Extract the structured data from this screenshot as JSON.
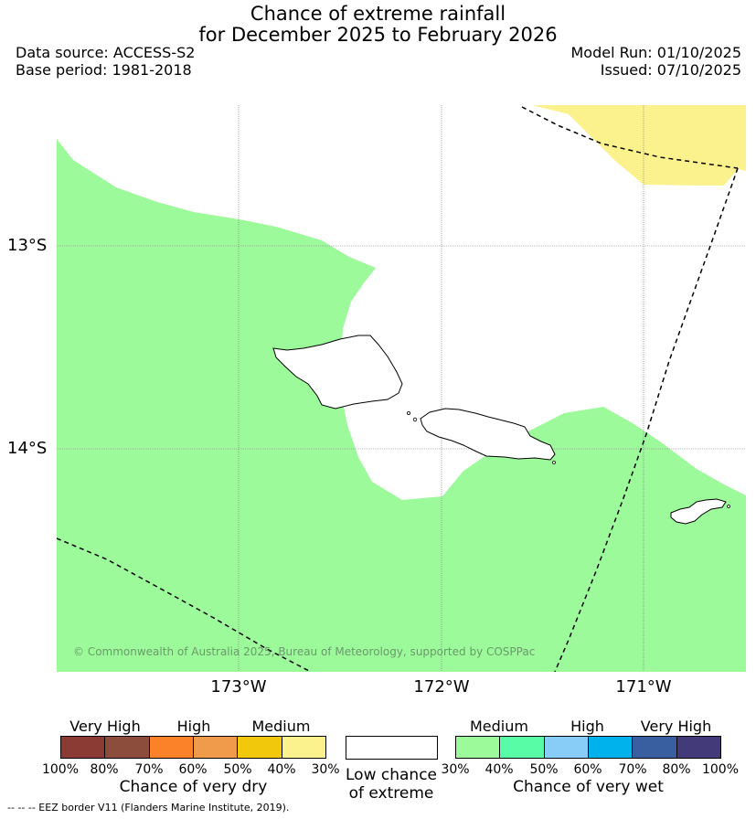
{
  "header": {
    "title_line1": "Chance of extreme rainfall",
    "title_line2": "for December 2025 to February 2026",
    "data_source": "Data source: ACCESS-S2",
    "base_period": "Base period: 1981-2018",
    "model_run": "Model Run: 01/10/2025",
    "issued": "Issued: 07/10/2025"
  },
  "map": {
    "lat_labels": [
      "13°S",
      "14°S"
    ],
    "lon_labels": [
      "173°W",
      "172°W",
      "171°W"
    ],
    "copyright": "© Commonwealth of Australia 2025, Bureau of Meteorology, supported by COSPPac",
    "colors": {
      "medium_wet": "#9cfa9a",
      "medium_dry": "#fbf28e",
      "land_outline": "#000000"
    }
  },
  "legend": {
    "dry": {
      "categories": [
        "Very High",
        "High",
        "Medium"
      ],
      "colors": [
        "#8b3a34",
        "#8c4d3c",
        "#fb8228",
        "#f09a4c",
        "#f1c80c",
        "#fbf28e"
      ],
      "ticks": [
        "100%",
        "80%",
        "70%",
        "60%",
        "50%",
        "40%",
        "30%"
      ],
      "caption": "Chance of very dry"
    },
    "low": {
      "caption_line1": "Low chance",
      "caption_line2": "of extreme"
    },
    "wet": {
      "categories": [
        "Medium",
        "High",
        "Very High"
      ],
      "colors": [
        "#9cfa9a",
        "#58fba6",
        "#88cdf7",
        "#00b2eb",
        "#3a5fa0",
        "#433a79"
      ],
      "ticks": [
        "30%",
        "40%",
        "50%",
        "60%",
        "70%",
        "80%",
        "100%"
      ],
      "caption": "Chance of very wet"
    }
  },
  "footer": {
    "eez_note": "--  --  -- EEZ border V11 (Flanders Marine Institute, 2019)."
  }
}
